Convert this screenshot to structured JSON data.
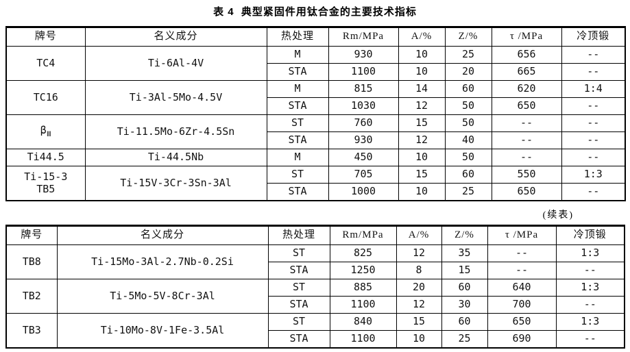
{
  "title": "表 4  典型紧固件用钛合金的主要技术指标",
  "continued_label": "(续表)",
  "columns": [
    "牌号",
    "名义成分",
    "热处理",
    "Rm/MPa",
    "A/%",
    "Z/%",
    "τ /MPa",
    "冷顶锻"
  ],
  "table1": {
    "groups": [
      {
        "grade": "TC4",
        "composition": "Ti-6Al-4V",
        "rows": [
          [
            "M",
            "930",
            "10",
            "25",
            "656",
            "--"
          ],
          [
            "STA",
            "1100",
            "10",
            "20",
            "665",
            "--"
          ]
        ]
      },
      {
        "grade": "TC16",
        "composition": "Ti-3Al-5Mo-4.5V",
        "rows": [
          [
            "M",
            "815",
            "14",
            "60",
            "620",
            "1:4"
          ],
          [
            "STA",
            "1030",
            "12",
            "50",
            "650",
            "--"
          ]
        ]
      },
      {
        "grade": "β",
        "grade_sub": "Ⅲ",
        "composition": "Ti-11.5Mo-6Zr-4.5Sn",
        "rows": [
          [
            "ST",
            "760",
            "15",
            "50",
            "--",
            "--"
          ],
          [
            "STA",
            "930",
            "12",
            "40",
            "--",
            "--"
          ]
        ]
      },
      {
        "grade": "Ti44.5",
        "composition": "Ti-44.5Nb",
        "rows": [
          [
            "M",
            "450",
            "10",
            "50",
            "--",
            "--"
          ]
        ]
      },
      {
        "grade": "Ti-15-3\nTB5",
        "composition": "Ti-15V-3Cr-3Sn-3Al",
        "rows": [
          [
            "ST",
            "705",
            "15",
            "60",
            "550",
            "1:3"
          ],
          [
            "STA",
            "1000",
            "10",
            "25",
            "650",
            "--"
          ]
        ]
      }
    ]
  },
  "table2": {
    "groups": [
      {
        "grade": "TB8",
        "composition": "Ti-15Mo-3Al-2.7Nb-0.2Si",
        "rows": [
          [
            "ST",
            "825",
            "12",
            "35",
            "--",
            "1:3"
          ],
          [
            "STA",
            "1250",
            "8",
            "15",
            "--",
            "--"
          ]
        ]
      },
      {
        "grade": "TB2",
        "composition": "Ti-5Mo-5V-8Cr-3Al",
        "rows": [
          [
            "ST",
            "885",
            "20",
            "60",
            "640",
            "1:3"
          ],
          [
            "STA",
            "1100",
            "12",
            "30",
            "700",
            "--"
          ]
        ]
      },
      {
        "grade": "TB3",
        "composition": "Ti-10Mo-8V-1Fe-3.5Al",
        "rows": [
          [
            "ST",
            "840",
            "15",
            "60",
            "650",
            "1:3"
          ],
          [
            "STA",
            "1100",
            "10",
            "25",
            "690",
            "--"
          ]
        ]
      }
    ]
  }
}
